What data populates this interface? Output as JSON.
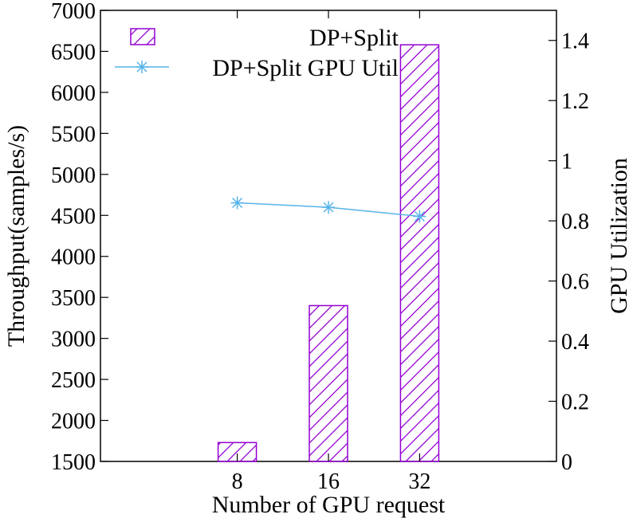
{
  "chart_data": {
    "type": "bar",
    "title": "",
    "xlabel": "Number of GPU request",
    "ylabel": "Throughput(samples/s)",
    "y2label": "GPU Utilization",
    "categories": [
      "8",
      "16",
      "32"
    ],
    "ylim": [
      1500,
      7000
    ],
    "y2lim": [
      0,
      1.5
    ],
    "yticks": [
      "1500",
      "2000",
      "2500",
      "3000",
      "3500",
      "4000",
      "4500",
      "5000",
      "5500",
      "6000",
      "6500",
      "7000"
    ],
    "y2ticks": [
      "0",
      "0.2",
      "0.4",
      "0.6",
      "0.8",
      "1",
      "1.2",
      "1.4"
    ],
    "grid": false,
    "legend_position": "top-right",
    "series": [
      {
        "name": "DP+Split",
        "kind": "bar",
        "axis": "left",
        "pattern": "hatch",
        "color": "#9400d3",
        "values": [
          1730,
          3400,
          6580
        ]
      },
      {
        "name": "DP+Split GPU Util",
        "kind": "line",
        "axis": "right",
        "marker": "asterisk",
        "color": "#56b4e9",
        "values": [
          0.86,
          0.845,
          0.815
        ]
      }
    ]
  }
}
